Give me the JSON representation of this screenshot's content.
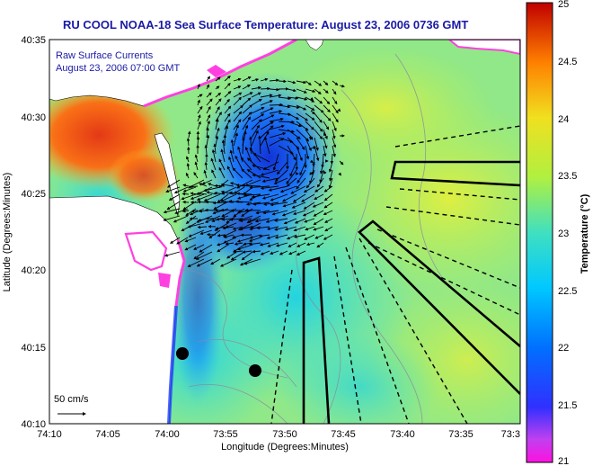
{
  "title": "RU COOL  NOAA-18  Sea Surface Temperature:  August 23, 2006 0736 GMT",
  "overlay": {
    "line1": "Raw Surface Currents",
    "line2": "August 23, 2006 07:00 GMT"
  },
  "scale_label": "50 cm/s",
  "x_axis": {
    "label": "Longitude (Degrees:Minutes)",
    "ticks": [
      "74:10",
      "74:05",
      "74:00",
      "73:55",
      "73:50",
      "73:45",
      "73:40",
      "73:35",
      "73:3"
    ]
  },
  "y_axis": {
    "label": "Latitude (Degrees:Minutes)",
    "ticks": [
      "40:35",
      "40:30",
      "40:25",
      "40:20",
      "40:15",
      "40:10"
    ]
  },
  "colorbar": {
    "label": "Temperature (°C)",
    "ticks": [
      "25",
      "24.5",
      "24",
      "23.5",
      "23",
      "22.5",
      "22",
      "21.5",
      "21"
    ],
    "min": 21,
    "max": 25
  },
  "colors": {
    "title": "#1a1aa6",
    "land": "#ffffff",
    "background": "#ffffff"
  }
}
